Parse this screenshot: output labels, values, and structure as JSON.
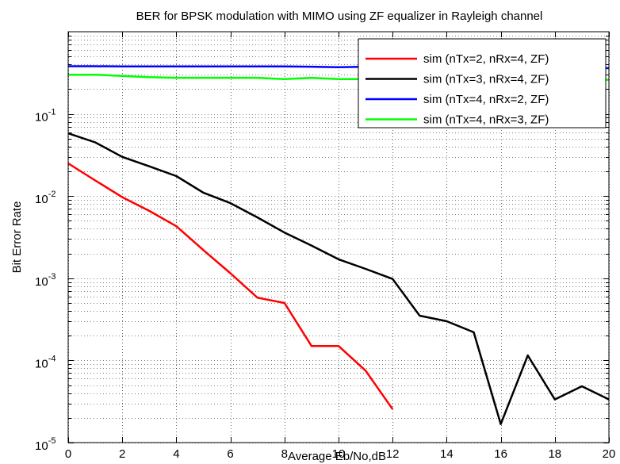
{
  "chart_data": {
    "type": "line",
    "title": "BER for BPSK modulation with MIMO using ZF equalizer in Rayleigh channel",
    "xlabel": "Average Eb/No,dB",
    "ylabel": "Bit Error Rate",
    "xlim": [
      0,
      20
    ],
    "ylim": [
      1e-05,
      1
    ],
    "yscale": "log",
    "grid": true,
    "legend_position": "top-right",
    "xticks": [
      "0",
      "2",
      "4",
      "6",
      "8",
      "10",
      "12",
      "14",
      "16",
      "18",
      "20"
    ],
    "yticks": [
      {
        "base": "10",
        "exp": "-5"
      },
      {
        "base": "10",
        "exp": "-4"
      },
      {
        "base": "10",
        "exp": "-3"
      },
      {
        "base": "10",
        "exp": "-2"
      },
      {
        "base": "10",
        "exp": "-1"
      }
    ],
    "series": [
      {
        "name": "sim (nTx=2, nRx=4, ZF)",
        "color": "#ff0000",
        "x": [
          0,
          1,
          2,
          3,
          4,
          5,
          6,
          7,
          8,
          9,
          10,
          11,
          12
        ],
        "y": [
          0.025,
          0.0155,
          0.0097,
          0.0066,
          0.0043,
          0.0022,
          0.00115,
          0.00058,
          0.0005,
          0.00015,
          0.00015,
          7.5e-05,
          2.55e-05
        ]
      },
      {
        "name": "sim (nTx=3, nRx=4, ZF)",
        "color": "#000000",
        "x": [
          0,
          1,
          2,
          3,
          4,
          5,
          6,
          7,
          8,
          9,
          10,
          11,
          12,
          13,
          14,
          15,
          16,
          17,
          18,
          19,
          20
        ],
        "y": [
          0.058,
          0.045,
          0.03,
          0.023,
          0.0175,
          0.011,
          0.0082,
          0.0055,
          0.0036,
          0.0025,
          0.0017,
          0.0013,
          0.00098,
          0.00035,
          0.0003,
          0.00022,
          1.68e-05,
          0.000115,
          3.35e-05,
          4.85e-05,
          3.35e-05
        ]
      },
      {
        "name": "sim (nTx=4, nRx=2, ZF)",
        "color": "#0000ff",
        "x": [
          0,
          1,
          2,
          3,
          4,
          5,
          6,
          7,
          8,
          9,
          10,
          11,
          12,
          13,
          14,
          15,
          16,
          17,
          18,
          19,
          20
        ],
        "y": [
          0.38,
          0.38,
          0.378,
          0.378,
          0.378,
          0.378,
          0.378,
          0.378,
          0.378,
          0.375,
          0.37,
          0.375,
          0.372,
          0.372,
          0.372,
          0.372,
          0.372,
          0.372,
          0.372,
          0.37,
          0.36
        ]
      },
      {
        "name": "sim (nTx=4, nRx=3, ZF)",
        "color": "#00ff00",
        "x": [
          0,
          1,
          2,
          3,
          4,
          5,
          6,
          7,
          8,
          9,
          10,
          11,
          12,
          13,
          14,
          15,
          16,
          17,
          18,
          19,
          20
        ],
        "y": [
          0.3,
          0.3,
          0.29,
          0.28,
          0.275,
          0.275,
          0.275,
          0.275,
          0.265,
          0.275,
          0.265,
          0.265,
          0.265,
          0.265,
          0.265,
          0.265,
          0.265,
          0.265,
          0.265,
          0.265,
          0.26
        ]
      }
    ]
  }
}
